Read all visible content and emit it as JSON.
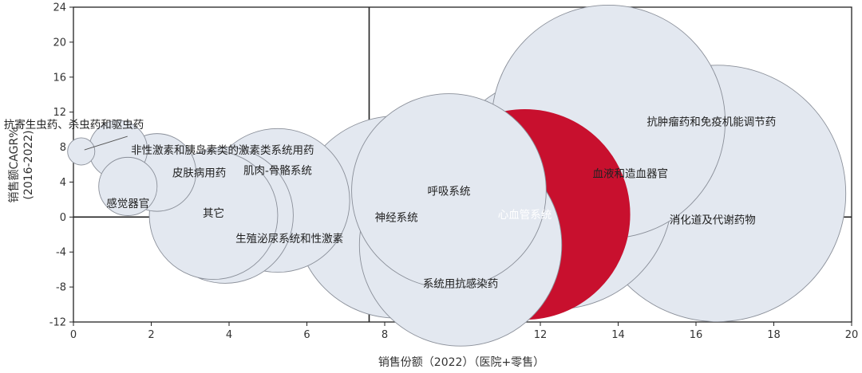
{
  "chart_data": {
    "type": "scatter",
    "subtype": "bubble",
    "xlabel": "销售份额（2022）（医院+零售）",
    "ylabel": "销售额CAGR%",
    "ylabel_sub": "(2016-2022)",
    "xlim": [
      0,
      20
    ],
    "ylim": [
      -12,
      24
    ],
    "x_ticks": [
      0,
      2,
      4,
      6,
      8,
      10,
      12,
      14,
      16,
      18,
      20
    ],
    "y_ticks": [
      24,
      20,
      16,
      12,
      8,
      4,
      0,
      -4,
      -8,
      -12
    ],
    "quadrant_lines": {
      "x": 7.6,
      "y": 0
    },
    "grid": false,
    "bubbles": [
      {
        "name": "抗寄生虫药、杀虫药和驱虫药",
        "x": 0.2,
        "y": 7.5,
        "size": 0.7,
        "label": "抗寄生虫药、杀虫药和驱虫药",
        "leader": true
      },
      {
        "name": "非性激素和胰岛素类的激素类系统用药",
        "x": 1.15,
        "y": 7.7,
        "size": 1.5,
        "label": "非性激素和胰岛素类的激素类系统用药"
      },
      {
        "name": "皮肤病用药",
        "x": 2.15,
        "y": 5.1,
        "size": 2.0,
        "label": "皮肤病用药"
      },
      {
        "name": "感觉器官",
        "x": 1.4,
        "y": 3.5,
        "size": 1.5,
        "label": "感觉器官"
      },
      {
        "name": "生殖泌尿系统和性激素",
        "x": 3.9,
        "y": 0.2,
        "size": 3.5,
        "label": "生殖泌尿系统和性激素"
      },
      {
        "name": "其它",
        "x": 3.6,
        "y": 0.2,
        "size": 3.3,
        "label": "其它"
      },
      {
        "name": "肌肉-骨骼系统",
        "x": 5.25,
        "y": 1.9,
        "size": 3.7,
        "label": "肌肉-骨骼系统"
      },
      {
        "name": "神经系统",
        "x": 8.3,
        "y": 0.0,
        "size": 5.2,
        "label": "神经系统"
      },
      {
        "name": "呼吸系统",
        "x": 9.65,
        "y": 3.0,
        "size": 5.0,
        "label": "呼吸系统"
      },
      {
        "name": "系统用抗感染药",
        "x": 9.95,
        "y": -3.2,
        "size": 5.2,
        "label": "系统用抗感染药"
      },
      {
        "name": "心血管系统",
        "x": 11.6,
        "y": 0.3,
        "size": 5.4,
        "label": "心血管系统",
        "highlight": true
      },
      {
        "name": "血液和造血器官",
        "x": 12.4,
        "y": 2.8,
        "size": 6.0,
        "label": "血液和造血器官"
      },
      {
        "name": "抗肿瘤药和免疫机能调节药",
        "x": 13.75,
        "y": 10.9,
        "size": 6.0,
        "label": "抗肿瘤药和免疫机能调节药"
      },
      {
        "name": "消化道及代谢药物",
        "x": 16.55,
        "y": 2.7,
        "size": 6.6,
        "label": "消化道及代谢药物"
      }
    ],
    "colors": {
      "bubble_fill": "#e3e8f0",
      "bubble_stroke": "#8a8f99",
      "highlight_fill": "#c8102e",
      "highlight_text": "#ffffff",
      "axis": "#222222"
    }
  }
}
